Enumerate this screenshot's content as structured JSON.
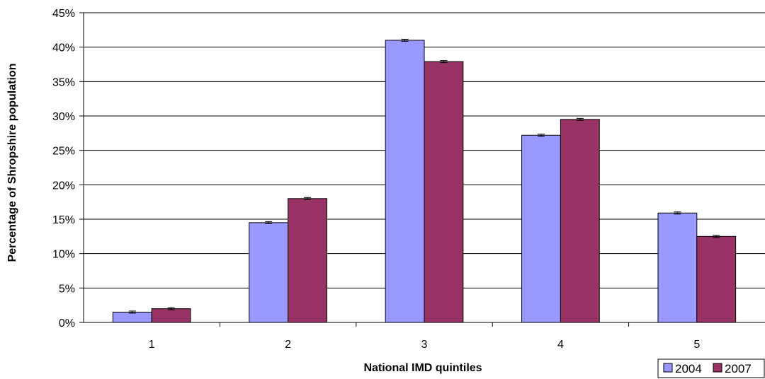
{
  "chart_data": {
    "type": "bar",
    "categories": [
      "1",
      "2",
      "3",
      "4",
      "5"
    ],
    "series": [
      {
        "name": "2004",
        "values": [
          1.5,
          14.5,
          41.0,
          27.2,
          15.9
        ],
        "color": "#9999ff"
      },
      {
        "name": "2007",
        "values": [
          2.0,
          18.0,
          37.9,
          29.5,
          12.5
        ],
        "color": "#993366"
      }
    ],
    "error_bars": true,
    "xlabel": "National IMD quintiles",
    "ylabel": "Percentage of Shropshire population",
    "ylim": [
      0,
      45
    ],
    "y_ticks": [
      "0%",
      "5%",
      "10%",
      "15%",
      "20%",
      "25%",
      "30%",
      "35%",
      "40%",
      "45%"
    ],
    "grid": "horizontal",
    "legend_position": "bottom-right"
  }
}
